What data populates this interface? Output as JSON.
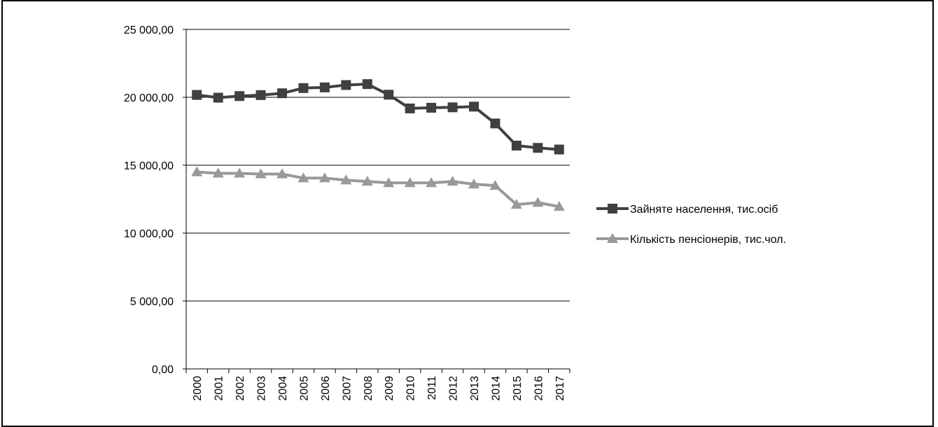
{
  "chart_data": {
    "type": "line",
    "title": "",
    "xlabel": "",
    "ylabel": "",
    "categories": [
      "2000",
      "2001",
      "2002",
      "2003",
      "2004",
      "2005",
      "2006",
      "2007",
      "2008",
      "2009",
      "2010",
      "2011",
      "2012",
      "2013",
      "2014",
      "2015",
      "2016",
      "2017"
    ],
    "y_ticks": [
      "0,00",
      "5 000,00",
      "10 000,00",
      "15 000,00",
      "20 000,00",
      "25 000,00"
    ],
    "ylim": [
      0,
      25000
    ],
    "grid": true,
    "legend_position": "right",
    "series": [
      {
        "name": "Зайняте населення,  тис.осіб",
        "marker": "square",
        "color": "#404040",
        "values": [
          20175,
          19972,
          20091,
          20163,
          20296,
          20680,
          20730,
          20905,
          20972,
          20192,
          19180,
          19231,
          19262,
          19314,
          18073,
          16443,
          16277,
          16156
        ]
      },
      {
        "name": "Кількість пенсіонерів, тис.чол.",
        "marker": "triangle",
        "color": "#999999",
        "values": [
          14500,
          14400,
          14400,
          14350,
          14350,
          14050,
          14050,
          13900,
          13800,
          13700,
          13700,
          13700,
          13800,
          13600,
          13500,
          12100,
          12250,
          11950
        ]
      }
    ]
  }
}
